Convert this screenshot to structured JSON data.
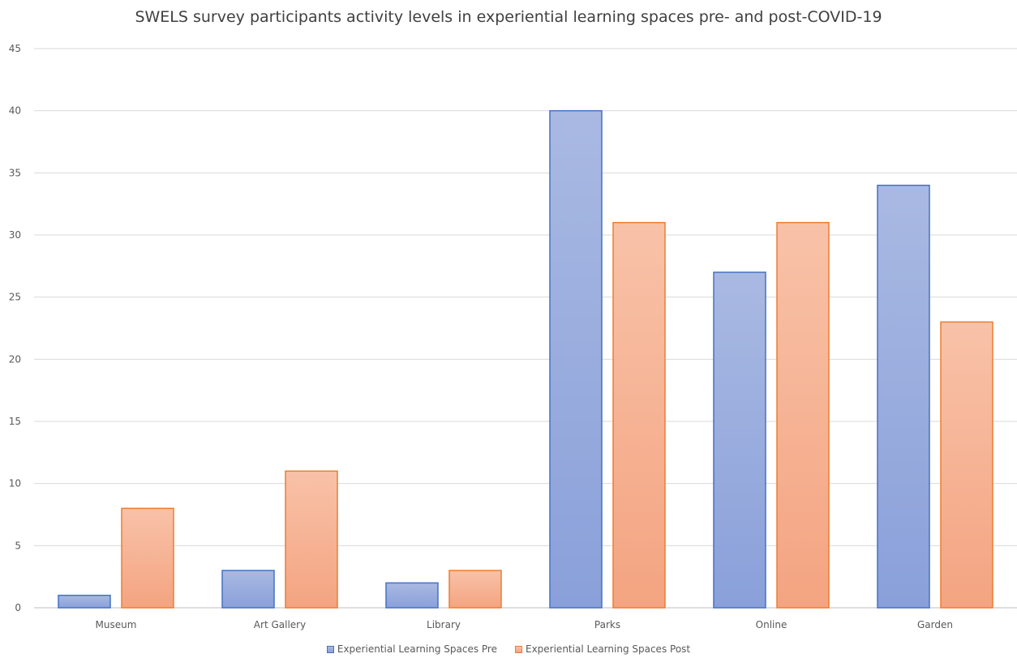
{
  "chart_data": {
    "type": "bar",
    "title": "SWELS survey participants activity levels in experiential learning spaces pre- and post-COVID-19",
    "xlabel": "",
    "ylabel": "",
    "categories": [
      "Museum",
      "Art Gallery",
      "Library",
      "Parks",
      "Online",
      "Garden"
    ],
    "series": [
      {
        "name": "Experiential Learning Spaces Pre",
        "values": [
          1,
          3,
          2,
          40,
          27,
          34
        ],
        "color_top": "#a9b9e2",
        "color_bottom": "#8aa0da",
        "stroke": "#4472c4"
      },
      {
        "name": "Experiential Learning Spaces Post",
        "values": [
          8,
          11,
          3,
          31,
          31,
          23
        ],
        "color_top": "#f8c2a8",
        "color_bottom": "#f4a481",
        "stroke": "#ed7d31"
      }
    ],
    "ylim": [
      0,
      45
    ],
    "yticks": [
      0,
      5,
      10,
      15,
      20,
      25,
      30,
      35,
      40,
      45
    ],
    "grid": true,
    "legend": "bottom"
  }
}
